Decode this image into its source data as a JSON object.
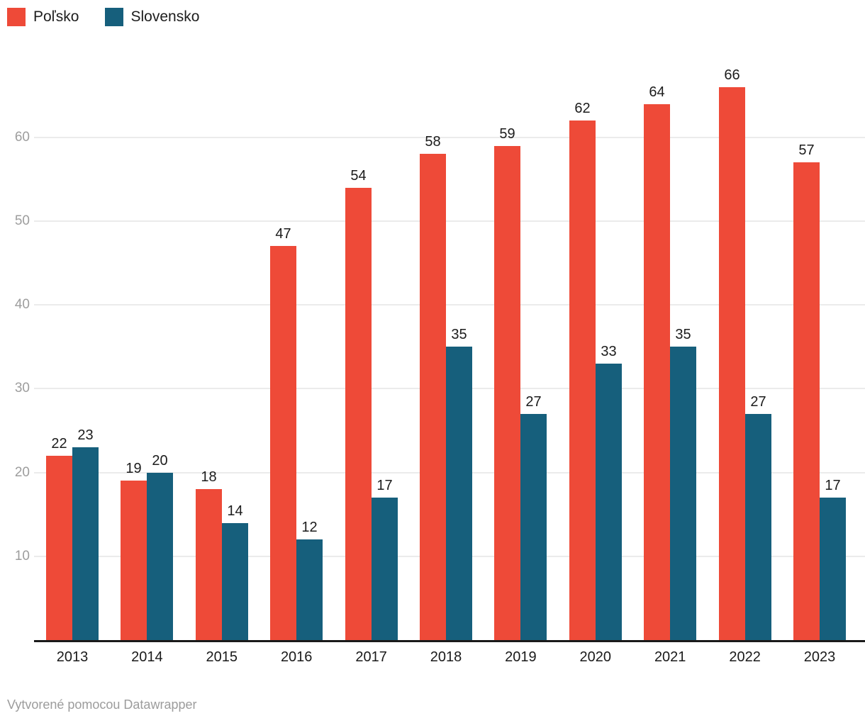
{
  "legend": {
    "items": [
      {
        "label": "Poľsko",
        "color": "#EE4A38"
      },
      {
        "label": "Slovensko",
        "color": "#165F7C"
      }
    ]
  },
  "footer": {
    "text": "Vytvorené pomocou Datawrapper"
  },
  "chart_data": {
    "type": "bar",
    "title": "",
    "categories": [
      "2013",
      "2014",
      "2015",
      "2016",
      "2017",
      "2018",
      "2019",
      "2020",
      "2021",
      "2022",
      "2023"
    ],
    "series": [
      {
        "name": "Poľsko",
        "color": "#EE4A38",
        "values": [
          22,
          19,
          18,
          47,
          54,
          58,
          59,
          62,
          64,
          66,
          57
        ]
      },
      {
        "name": "Slovensko",
        "color": "#165F7C",
        "values": [
          23,
          20,
          14,
          12,
          17,
          35,
          27,
          33,
          35,
          27,
          17
        ]
      }
    ],
    "value_labels_shown": true,
    "yticks": [
      10,
      20,
      30,
      40,
      50,
      60
    ],
    "ylim": [
      0,
      72
    ],
    "xlabel": "",
    "ylabel": "",
    "grid": true,
    "legend_position": "top-left"
  }
}
